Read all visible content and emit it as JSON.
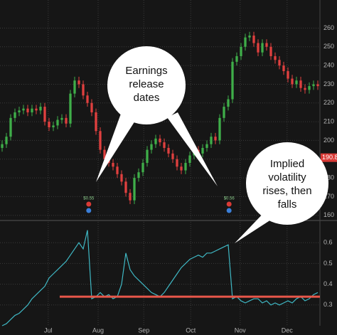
{
  "chart_data": [
    {
      "type": "candlestick",
      "xlim": [
        0,
        75
      ],
      "xticks": [
        {
          "value": 11.3,
          "label": "Jul"
        },
        {
          "value": 23,
          "label": "Aug"
        },
        {
          "value": 33.7,
          "label": "Sep"
        },
        {
          "value": 44.7,
          "label": "Oct"
        },
        {
          "value": 56.3,
          "label": "Nov"
        },
        {
          "value": 67.3,
          "label": "Dec"
        }
      ],
      "ylim": [
        158,
        275
      ],
      "yticks": [
        160,
        170,
        180,
        190,
        200,
        210,
        220,
        230,
        240,
        250,
        260
      ],
      "grid": true,
      "up_color": "#3fae49",
      "down_color": "#e0403f",
      "open": [
        196,
        198,
        202,
        212,
        215,
        216,
        217,
        215,
        217,
        216,
        218,
        210,
        207,
        208,
        211,
        212,
        209,
        225,
        232,
        230,
        224,
        220,
        215,
        205,
        195,
        190,
        188,
        186,
        182,
        178,
        172,
        168,
        180,
        183,
        188,
        195,
        198,
        201,
        199,
        196,
        193,
        190,
        186,
        184,
        188,
        192,
        195,
        193,
        196,
        198,
        202,
        200,
        212,
        218,
        222,
        242,
        245,
        250,
        255,
        256,
        252,
        247,
        252,
        250,
        245,
        243,
        240,
        237,
        233,
        230,
        232,
        228,
        227,
        229,
        230
      ],
      "high": [
        200,
        204,
        214,
        217,
        218,
        219,
        219,
        219,
        219,
        220,
        220,
        212,
        210,
        213,
        214,
        214,
        227,
        234,
        234,
        232,
        226,
        222,
        217,
        207,
        197,
        192,
        190,
        188,
        184,
        180,
        174,
        182,
        185,
        190,
        197,
        200,
        203,
        203,
        201,
        198,
        195,
        192,
        188,
        190,
        194,
        197,
        197,
        198,
        200,
        204,
        204,
        214,
        220,
        224,
        244,
        247,
        252,
        257,
        258,
        258,
        254,
        254,
        254,
        252,
        247,
        245,
        242,
        239,
        235,
        234,
        234,
        230,
        231,
        232,
        232
      ],
      "low": [
        194,
        196,
        200,
        210,
        213,
        214,
        213,
        213,
        214,
        214,
        208,
        205,
        205,
        206,
        209,
        207,
        207,
        223,
        228,
        222,
        218,
        213,
        203,
        193,
        188,
        186,
        184,
        180,
        176,
        170,
        166,
        166,
        178,
        181,
        186,
        193,
        196,
        197,
        194,
        191,
        188,
        184,
        182,
        182,
        186,
        190,
        191,
        191,
        194,
        196,
        198,
        198,
        210,
        216,
        220,
        240,
        243,
        248,
        253,
        250,
        245,
        245,
        248,
        243,
        241,
        238,
        235,
        231,
        228,
        228,
        226,
        225,
        225,
        227,
        227
      ],
      "close": [
        198,
        202,
        212,
        215,
        216,
        217,
        215,
        217,
        216,
        218,
        210,
        207,
        208,
        211,
        212,
        209,
        225,
        232,
        230,
        224,
        220,
        215,
        205,
        195,
        190,
        188,
        186,
        182,
        178,
        172,
        168,
        180,
        183,
        188,
        195,
        198,
        201,
        199,
        196,
        193,
        190,
        186,
        184,
        188,
        192,
        195,
        193,
        196,
        198,
        202,
        200,
        212,
        218,
        222,
        242,
        245,
        250,
        255,
        256,
        252,
        247,
        252,
        250,
        245,
        243,
        240,
        237,
        233,
        230,
        232,
        228,
        227,
        229,
        230,
        229
      ],
      "price_marker": {
        "value": 190.8,
        "label": "190.8",
        "color": "#d93a36"
      },
      "events": [
        {
          "x": 20.8,
          "label": "$0.55"
        },
        {
          "x": 53.7,
          "label": "$0.56"
        }
      ],
      "annotations": [
        {
          "lines": [
            "Earnings",
            "release",
            "dates"
          ]
        },
        {
          "lines": [
            "Implied",
            "volatility",
            "rises, then",
            "falls"
          ]
        }
      ]
    },
    {
      "type": "line",
      "xlim": [
        0,
        75
      ],
      "ylim": [
        0.2,
        0.7
      ],
      "yticks": [
        0.3,
        0.4,
        0.5,
        0.6
      ],
      "grid": true,
      "color": "#3fb8c4",
      "values": [
        0.2,
        0.21,
        0.23,
        0.25,
        0.26,
        0.28,
        0.3,
        0.33,
        0.35,
        0.37,
        0.39,
        0.43,
        0.45,
        0.47,
        0.49,
        0.51,
        0.54,
        0.57,
        0.6,
        0.57,
        0.66,
        0.33,
        0.34,
        0.36,
        0.34,
        0.35,
        0.33,
        0.34,
        0.4,
        0.55,
        0.47,
        0.44,
        0.42,
        0.4,
        0.38,
        0.36,
        0.35,
        0.34,
        0.36,
        0.39,
        0.42,
        0.45,
        0.48,
        0.5,
        0.52,
        0.53,
        0.54,
        0.53,
        0.55,
        0.55,
        0.56,
        0.57,
        0.58,
        0.59,
        0.33,
        0.34,
        0.32,
        0.31,
        0.32,
        0.33,
        0.33,
        0.31,
        0.32,
        0.3,
        0.31,
        0.3,
        0.31,
        0.32,
        0.31,
        0.33,
        0.34,
        0.32,
        0.33,
        0.35,
        0.36
      ],
      "reference_line": {
        "value": 0.34,
        "x": [
          14,
          75
        ],
        "color": "#e8574a"
      }
    }
  ]
}
